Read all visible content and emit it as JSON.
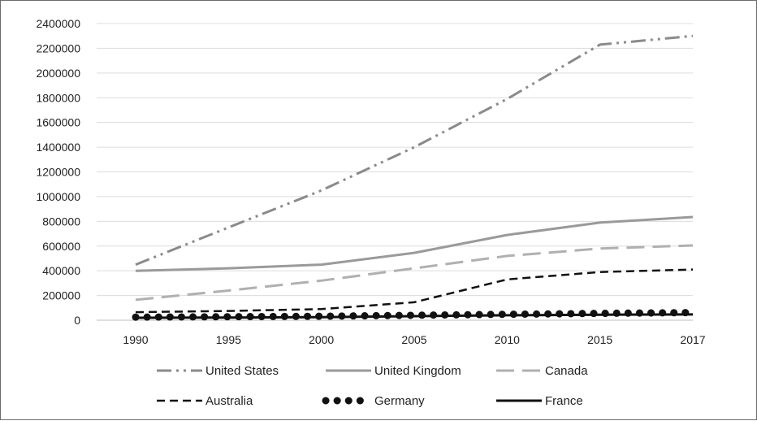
{
  "chart_data": {
    "type": "line",
    "title": "",
    "xlabel": "",
    "ylabel": "",
    "x": [
      1990,
      1995,
      2000,
      2005,
      2010,
      2015,
      2017
    ],
    "ylim": [
      0,
      2400000
    ],
    "yticks": [
      0,
      200000,
      400000,
      600000,
      800000,
      1000000,
      1200000,
      1400000,
      1600000,
      1800000,
      2000000,
      2200000,
      2400000
    ],
    "grid": "horizontal",
    "legend_position": "bottom",
    "series": [
      {
        "name": "United States",
        "color": "#8a8a8a",
        "style": "dash-dot-dot",
        "values": [
          450000,
          750000,
          1050000,
          1400000,
          1790000,
          2230000,
          2300000
        ]
      },
      {
        "name": "United Kingdom",
        "color": "#9a9a9a",
        "style": "solid",
        "values": [
          400000,
          420000,
          450000,
          545000,
          690000,
          790000,
          835000
        ]
      },
      {
        "name": "Canada",
        "color": "#b0b0b0",
        "style": "long-dash",
        "values": [
          165000,
          240000,
          320000,
          420000,
          520000,
          580000,
          605000
        ]
      },
      {
        "name": "Australia",
        "color": "#111111",
        "style": "dash",
        "values": [
          65000,
          75000,
          90000,
          145000,
          330000,
          390000,
          410000
        ]
      },
      {
        "name": "Germany",
        "color": "#111111",
        "style": "round-dot",
        "values": [
          25000,
          28000,
          32000,
          40000,
          48000,
          55000,
          62000
        ]
      },
      {
        "name": "France",
        "color": "#111111",
        "style": "solid",
        "values": [
          20000,
          22000,
          25000,
          33000,
          40000,
          45000,
          47000
        ]
      }
    ]
  }
}
